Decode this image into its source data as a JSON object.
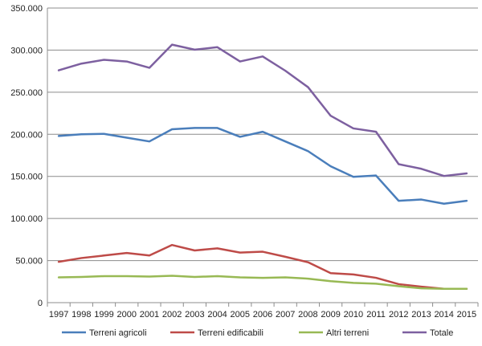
{
  "chart_data": {
    "type": "line",
    "x": [
      "1997",
      "1998",
      "1999",
      "2000",
      "2001",
      "2002",
      "2003",
      "2004",
      "2005",
      "2006",
      "2007",
      "2008",
      "2009",
      "2010",
      "2011",
      "2012",
      "2013",
      "2014",
      "2015"
    ],
    "y_ticks": [
      "0",
      "50.000",
      "100.000",
      "150.000",
      "200.000",
      "250.000",
      "300.000",
      "350.000"
    ],
    "ylim": [
      0,
      350000
    ],
    "grid": true,
    "legend_position": "bottom",
    "series": [
      {
        "name": "Terreni agricoli",
        "color": "#4a7ebb",
        "values": [
          198000,
          200000,
          200500,
          196000,
          191500,
          206000,
          207500,
          207500,
          197000,
          203000,
          191500,
          180000,
          162000,
          149500,
          151000,
          121000,
          122500,
          117500,
          121000
        ]
      },
      {
        "name": "Terreni edificabili",
        "color": "#be4b48",
        "values": [
          48500,
          53000,
          56000,
          59000,
          56000,
          68500,
          62000,
          64500,
          59500,
          60500,
          54500,
          48000,
          35000,
          33500,
          29500,
          22000,
          19000,
          16500,
          16500
        ]
      },
      {
        "name": "Altri terreni",
        "color": "#98b954",
        "values": [
          30000,
          30500,
          31500,
          31500,
          31000,
          32000,
          30500,
          31500,
          30000,
          29500,
          30000,
          28500,
          25500,
          23500,
          22500,
          19500,
          17000,
          16500,
          16500
        ]
      },
      {
        "name": "Totale",
        "color": "#7d60a0",
        "values": [
          276000,
          284000,
          288500,
          286500,
          279000,
          306500,
          300500,
          303500,
          286500,
          292500,
          275500,
          256000,
          222000,
          207000,
          203000,
          164500,
          159000,
          150500,
          153500
        ]
      }
    ]
  }
}
